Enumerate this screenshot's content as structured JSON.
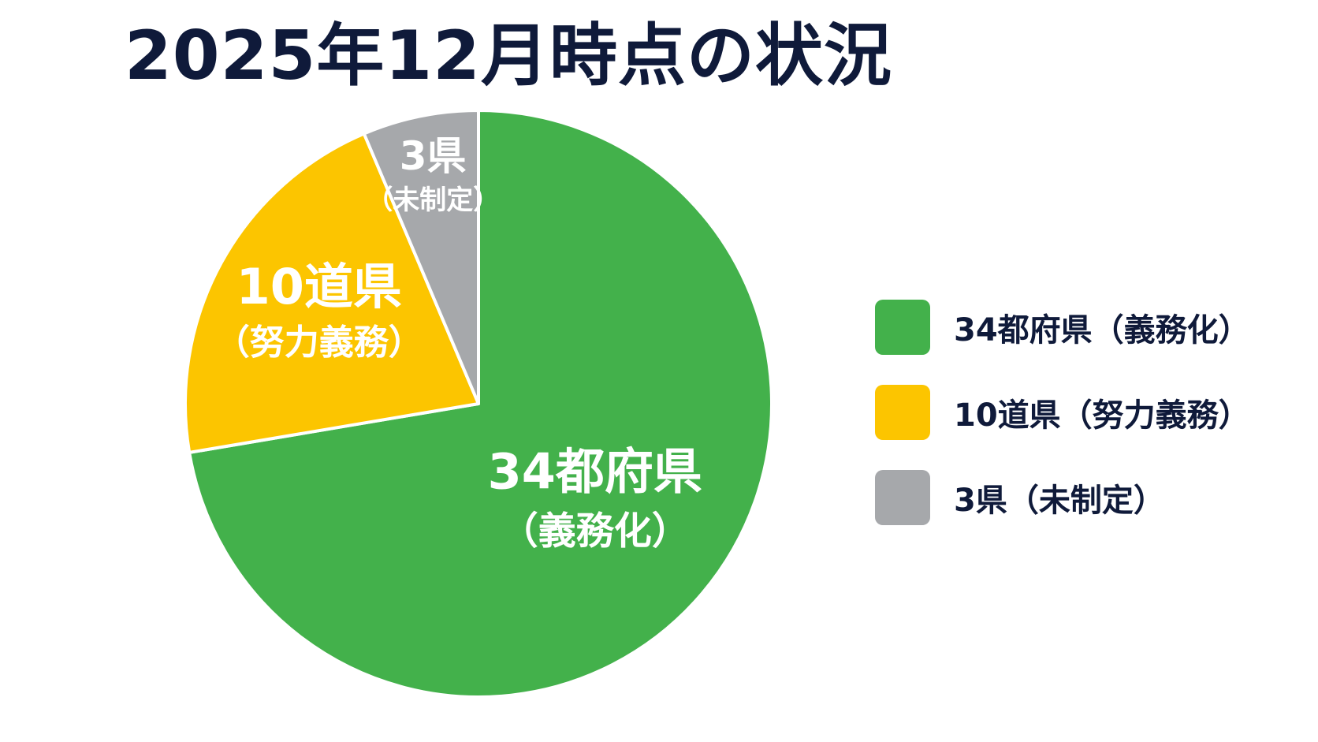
{
  "chart_data": {
    "type": "pie",
    "title": "2025年12月時点の状況",
    "total": 47,
    "slices": [
      {
        "name": "34都府県（義務化）",
        "value": 34,
        "count_label": "34都府県",
        "sub_label": "（義務化）",
        "color": "#43b14b"
      },
      {
        "name": "10道県（努力義務）",
        "value": 10,
        "count_label": "10道県",
        "sub_label": "（努力義務）",
        "color": "#fcc500"
      },
      {
        "name": "3県（未制定）",
        "value": 3,
        "count_label": "3県",
        "sub_label": "（未制定）",
        "color": "#a6a8ab"
      }
    ],
    "start_angle": "12 o'clock",
    "direction": "clockwise",
    "legend_position": "right"
  }
}
